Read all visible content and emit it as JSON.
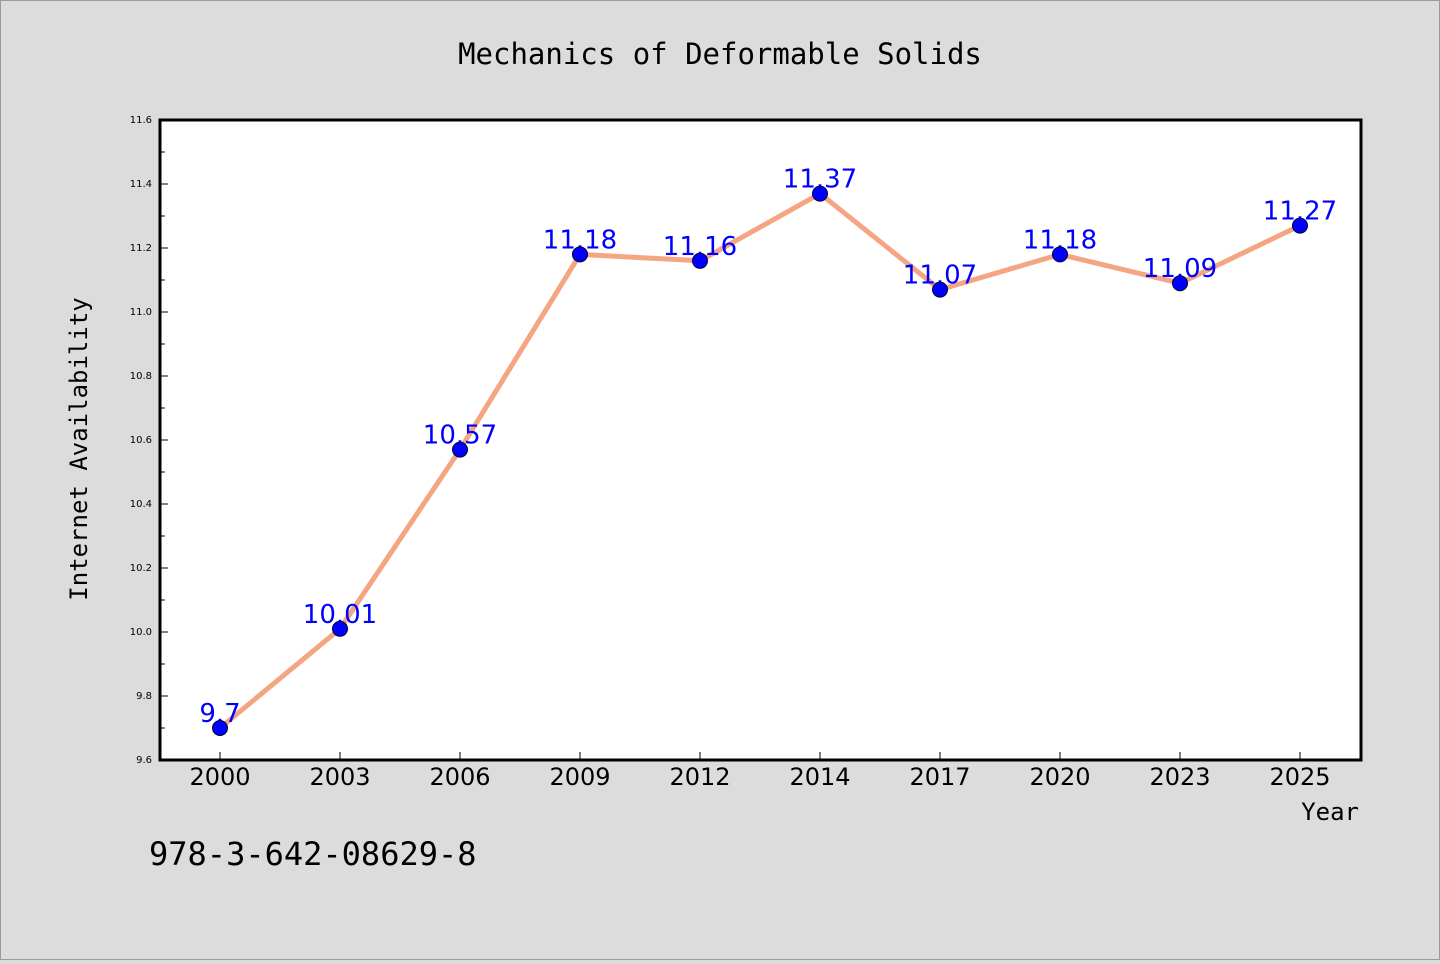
{
  "chart_data": {
    "type": "line",
    "title": "Mechanics of Deformable Solids",
    "xlabel": "Year",
    "ylabel": "Internet Availability",
    "categories": [
      "2000",
      "2003",
      "2006",
      "2009",
      "2012",
      "2014",
      "2017",
      "2020",
      "2023",
      "2025"
    ],
    "series": [
      {
        "values": [
          9.7,
          10.01,
          10.57,
          11.18,
          11.16,
          11.37,
          11.07,
          11.18,
          11.09,
          11.27
        ],
        "data_labels": [
          "9.7",
          "10.01",
          "10.57",
          "11.18",
          "11.16",
          "11.37",
          "11.07",
          "11.18",
          "11.09",
          "11.27"
        ]
      }
    ],
    "ylim": [
      9.6,
      11.6
    ],
    "y_ticks": [
      "9.6",
      "9.8",
      "10.0",
      "10.2",
      "10.4",
      "10.6",
      "10.8",
      "11.0",
      "11.2",
      "11.4",
      "11.6"
    ],
    "grid": false,
    "legend": "none",
    "annotation": "978-3-642-08629-8",
    "colors": {
      "background": "#dcdcdc",
      "plot_background": "#ffffff",
      "line": "#f4a582",
      "marker": "#0000ff",
      "data_label": "#0000ff",
      "text": "#000000"
    }
  }
}
